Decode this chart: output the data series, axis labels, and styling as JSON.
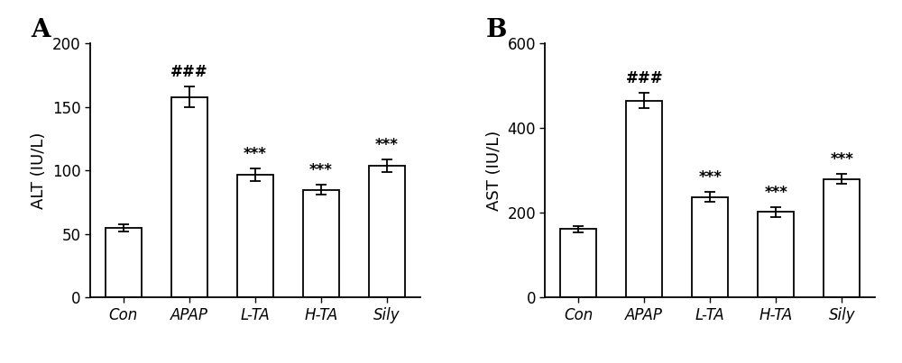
{
  "panel_A": {
    "label": "A",
    "categories": [
      "Con",
      "APAP",
      "L-TA",
      "H-TA",
      "Sily"
    ],
    "values": [
      55,
      158,
      97,
      85,
      104
    ],
    "errors": [
      3,
      8,
      5,
      4,
      5
    ],
    "ylabel": "ALT (IU/L)",
    "ylim": [
      0,
      200
    ],
    "yticks": [
      0,
      50,
      100,
      150,
      200
    ],
    "annotations": [
      "",
      "###",
      "***",
      "***",
      "***"
    ],
    "bar_color": "#ffffff",
    "bar_edgecolor": "#000000",
    "errorbar_color": "#000000"
  },
  "panel_B": {
    "label": "B",
    "categories": [
      "Con",
      "APAP",
      "L-TA",
      "H-TA",
      "Sily"
    ],
    "values": [
      162,
      465,
      238,
      202,
      280
    ],
    "errors": [
      8,
      18,
      12,
      12,
      12
    ],
    "ylabel": "AST (IU/L)",
    "ylim": [
      0,
      600
    ],
    "yticks": [
      0,
      200,
      400,
      600
    ],
    "annotations": [
      "",
      "###",
      "***",
      "***",
      "***"
    ],
    "bar_color": "#ffffff",
    "bar_edgecolor": "#000000",
    "errorbar_color": "#000000"
  },
  "figure_bg": "#ffffff",
  "label_fontsize": 20,
  "tick_fontsize": 12,
  "ylabel_fontsize": 13,
  "annot_fontsize": 12,
  "bar_width": 0.55
}
